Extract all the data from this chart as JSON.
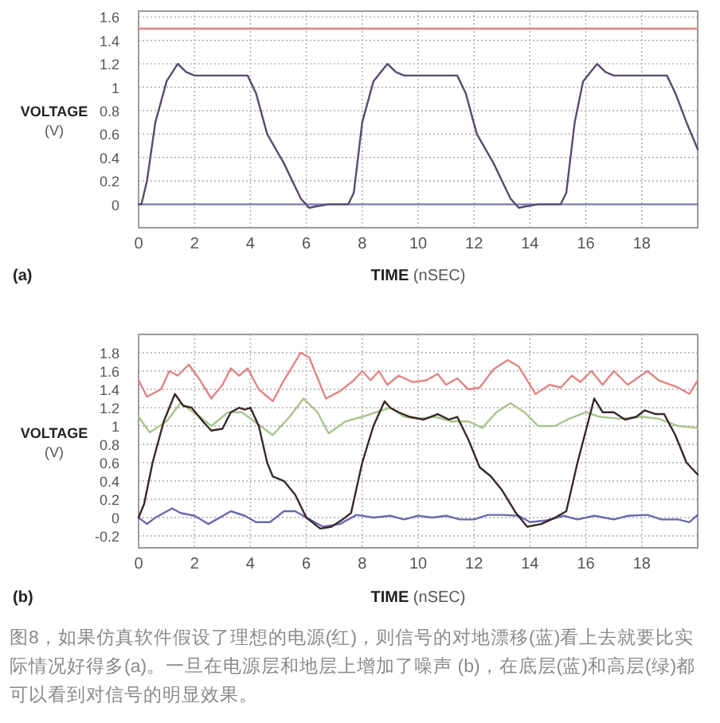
{
  "chart_data": [
    {
      "type": "line",
      "ylabel": "VOLTAGE (V)",
      "xlabel": "TIME (nSEC)",
      "annotations": [
        "(a)"
      ],
      "xlim": [
        0,
        20
      ],
      "xticks": [
        0,
        2,
        4,
        6,
        8,
        10,
        12,
        14,
        16,
        18
      ],
      "ylim": [
        -0.2,
        1.65
      ],
      "yticks": [
        0,
        0.2,
        0.4,
        0.6,
        0.8,
        1,
        1.2,
        1.4,
        1.6
      ],
      "grid": true,
      "series": [
        {
          "color": "#e08585",
          "x": [
            0,
            20
          ],
          "values": [
            1.5,
            1.5
          ]
        },
        {
          "color": "#7a7ab8",
          "x": [
            0,
            20
          ],
          "values": [
            0,
            0
          ]
        },
        {
          "color": "#5a4a6e",
          "x": [
            0,
            0.1,
            0.3,
            0.6,
            1.0,
            1.4,
            1.7,
            2.0,
            3.9,
            4.2,
            4.6,
            5.2,
            5.8,
            6.1,
            6.3,
            6.8,
            7.5,
            7.7,
            8.0,
            8.4,
            8.9,
            9.2,
            9.5,
            11.4,
            11.7,
            12.1,
            12.7,
            13.3,
            13.6,
            13.8,
            14.3,
            15.1,
            15.3,
            15.6,
            15.9,
            16.4,
            16.7,
            17,
            18.9,
            19.2,
            19.6,
            20
          ],
          "values": [
            0,
            0,
            0.2,
            0.7,
            1.05,
            1.2,
            1.13,
            1.1,
            1.1,
            0.95,
            0.6,
            0.35,
            0.05,
            -0.03,
            -0.02,
            0,
            0,
            0.1,
            0.7,
            1.05,
            1.2,
            1.13,
            1.1,
            1.1,
            0.95,
            0.6,
            0.35,
            0.05,
            -0.03,
            -0.02,
            0,
            0,
            0.1,
            0.7,
            1.05,
            1.2,
            1.13,
            1.1,
            1.1,
            0.95,
            0.7,
            0.47
          ]
        }
      ]
    },
    {
      "type": "line",
      "ylabel": "VOLTAGE (V)",
      "xlabel": "TIME (nSEC)",
      "annotations": [
        "(b)",
        "图8，如果仿真软件假设了理想的电源(红)，则信号的对地漂移(蓝)看上去就要比实际情况好得多(a)。一旦在电源层和地层上增加了噪声 (b)，在底层(蓝)和高层(绿)都可以看到对信号的明显效果。"
      ],
      "xlim": [
        0,
        20
      ],
      "xticks": [
        0,
        2,
        4,
        6,
        8,
        10,
        12,
        14,
        16,
        18
      ],
      "ylim": [
        -0.33,
        2.0
      ],
      "yticks": [
        -0.2,
        0,
        0.2,
        0.4,
        0.6,
        0.8,
        1,
        1.2,
        1.4,
        1.6,
        1.8
      ],
      "grid": true,
      "series": [
        {
          "color": "#e08585",
          "x": [
            0,
            0.3,
            0.8,
            1.1,
            1.4,
            1.8,
            2.2,
            2.6,
            3,
            3.3,
            3.6,
            3.9,
            4.3,
            4.8,
            5.2,
            5.8,
            6.1,
            6.7,
            7.2,
            7.7,
            8,
            8.3,
            8.6,
            8.9,
            9.3,
            9.8,
            10.3,
            10.7,
            11,
            11.4,
            11.8,
            12.2,
            12.7,
            13.2,
            13.6,
            14.2,
            14.7,
            15.1,
            15.5,
            15.8,
            16.2,
            16.6,
            17,
            17.5,
            18.2,
            18.6,
            19.3,
            19.7,
            20
          ],
          "values": [
            1.5,
            1.32,
            1.4,
            1.6,
            1.55,
            1.67,
            1.5,
            1.3,
            1.45,
            1.63,
            1.55,
            1.63,
            1.4,
            1.27,
            1.5,
            1.8,
            1.75,
            1.3,
            1.38,
            1.5,
            1.6,
            1.5,
            1.6,
            1.45,
            1.55,
            1.48,
            1.5,
            1.57,
            1.45,
            1.52,
            1.4,
            1.42,
            1.62,
            1.72,
            1.65,
            1.35,
            1.45,
            1.42,
            1.55,
            1.48,
            1.6,
            1.45,
            1.6,
            1.45,
            1.6,
            1.5,
            1.42,
            1.35,
            1.5
          ]
        },
        {
          "color": "#a9c48f",
          "x": [
            0,
            0.4,
            1,
            1.5,
            2.2,
            2.6,
            3.2,
            3.7,
            4.8,
            5.4,
            5.9,
            6.4,
            6.8,
            7.4,
            8,
            8.5,
            9,
            9.5,
            10,
            10.6,
            11.2,
            11.8,
            12.3,
            12.8,
            13.3,
            13.8,
            14.3,
            14.9,
            15.4,
            16,
            16.5,
            17.2,
            18,
            18.6,
            19.3,
            20
          ],
          "values": [
            1.1,
            0.93,
            1.05,
            1.25,
            1.1,
            1.0,
            1.15,
            1.15,
            0.9,
            1.1,
            1.3,
            1.15,
            0.92,
            1.05,
            1.1,
            1.15,
            1.2,
            1.1,
            1.08,
            1.1,
            1.05,
            1.05,
            0.98,
            1.15,
            1.25,
            1.15,
            1.0,
            1.0,
            1.08,
            1.15,
            1.1,
            1.08,
            1.1,
            1.08,
            1.0,
            0.98
          ]
        },
        {
          "color": "#6a6ab0",
          "x": [
            0,
            0.3,
            0.6,
            1.2,
            1.5,
            2,
            2.5,
            3.3,
            3.8,
            4.2,
            4.7,
            5.2,
            5.6,
            6,
            6.6,
            7.2,
            7.8,
            8.4,
            9,
            9.5,
            10,
            10.5,
            11,
            11.5,
            12,
            12.5,
            13,
            13.6,
            14,
            14.6,
            15.2,
            15.7,
            16.3,
            17,
            17.5,
            18.2,
            18.7,
            19.3,
            19.7,
            20
          ],
          "values": [
            0,
            -0.07,
            0,
            0.1,
            0.05,
            0.02,
            -0.07,
            0.07,
            0.02,
            -0.05,
            -0.05,
            0.07,
            0.07,
            0,
            -0.1,
            -0.07,
            0.03,
            0,
            0.02,
            -0.02,
            0.02,
            0,
            0.02,
            -0.02,
            -0.02,
            0.03,
            0.03,
            0.02,
            -0.05,
            -0.03,
            0.02,
            -0.02,
            0.02,
            -0.02,
            0.02,
            0.03,
            -0.02,
            -0.02,
            -0.05,
            0.03
          ]
        },
        {
          "color": "#3a2828",
          "x": [
            0,
            0.2,
            0.5,
            0.9,
            1.3,
            1.6,
            1.9,
            2.3,
            2.6,
            3,
            3.3,
            3.6,
            3.8,
            4.0,
            4.3,
            4.6,
            4.8,
            5.2,
            5.6,
            6.0,
            6.5,
            6.9,
            7.3,
            7.6,
            8.0,
            8.4,
            8.8,
            9.0,
            9.3,
            9.7,
            10.2,
            10.7,
            11.1,
            11.4,
            11.8,
            12.2,
            12.6,
            13.0,
            13.5,
            13.9,
            14.4,
            14.9,
            15.3,
            15.7,
            16.0,
            16.3,
            16.6,
            17.0,
            17.4,
            17.8,
            18.1,
            18.5,
            18.8,
            19.2,
            19.6,
            20
          ],
          "values": [
            0,
            0.15,
            0.6,
            1.05,
            1.35,
            1.22,
            1.2,
            1.05,
            0.95,
            0.97,
            1.15,
            1.2,
            1.18,
            1.2,
            1.0,
            0.6,
            0.45,
            0.4,
            0.25,
            0.0,
            -0.12,
            -0.1,
            -0.02,
            0.05,
            0.6,
            1.0,
            1.27,
            1.2,
            1.15,
            1.1,
            1.07,
            1.13,
            1.07,
            1.1,
            0.85,
            0.55,
            0.45,
            0.3,
            0.05,
            -0.1,
            -0.07,
            0.0,
            0.07,
            0.6,
            0.95,
            1.3,
            1.15,
            1.15,
            1.07,
            1.1,
            1.17,
            1.13,
            1.13,
            0.9,
            0.6,
            0.47
          ]
        }
      ]
    }
  ]
}
